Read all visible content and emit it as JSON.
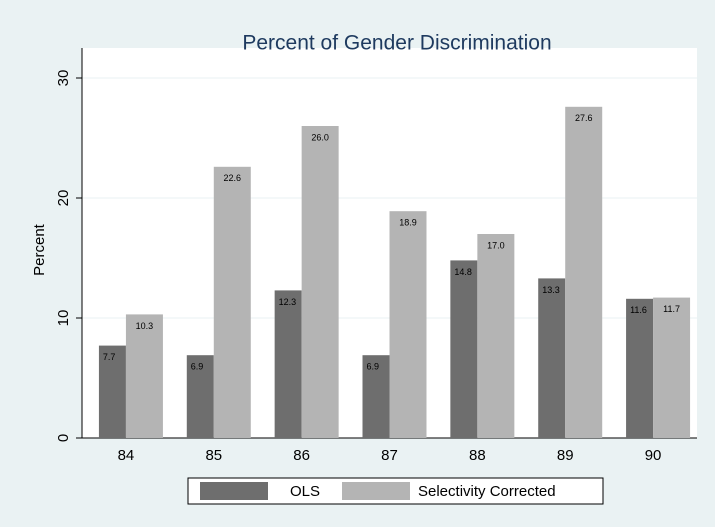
{
  "chart_data": {
    "type": "bar",
    "title": "Percent of Gender Discrimination",
    "y_label": "Percent",
    "categories": [
      "84",
      "85",
      "86",
      "87",
      "88",
      "89",
      "90"
    ],
    "series": [
      {
        "name": "OLS",
        "color": "#6e6e6e",
        "values": [
          7.7,
          6.9,
          12.3,
          6.9,
          14.8,
          13.3,
          11.6
        ],
        "value_labels": [
          "7.7",
          "6.9",
          "12.3",
          "6.9",
          "14.8",
          "13.3",
          "11.6"
        ]
      },
      {
        "name": "Selectivity Corrected",
        "color": "#b4b4b4",
        "values": [
          10.3,
          22.6,
          26,
          18.9,
          17,
          27.6,
          11.7
        ],
        "value_labels": [
          "10.3",
          "22.6",
          "26.0",
          "18.9",
          "17.0",
          "27.6",
          "11.7"
        ]
      }
    ],
    "ylim": [
      0,
      30
    ],
    "yticks": [
      0,
      10,
      20,
      30
    ],
    "grid": true
  }
}
